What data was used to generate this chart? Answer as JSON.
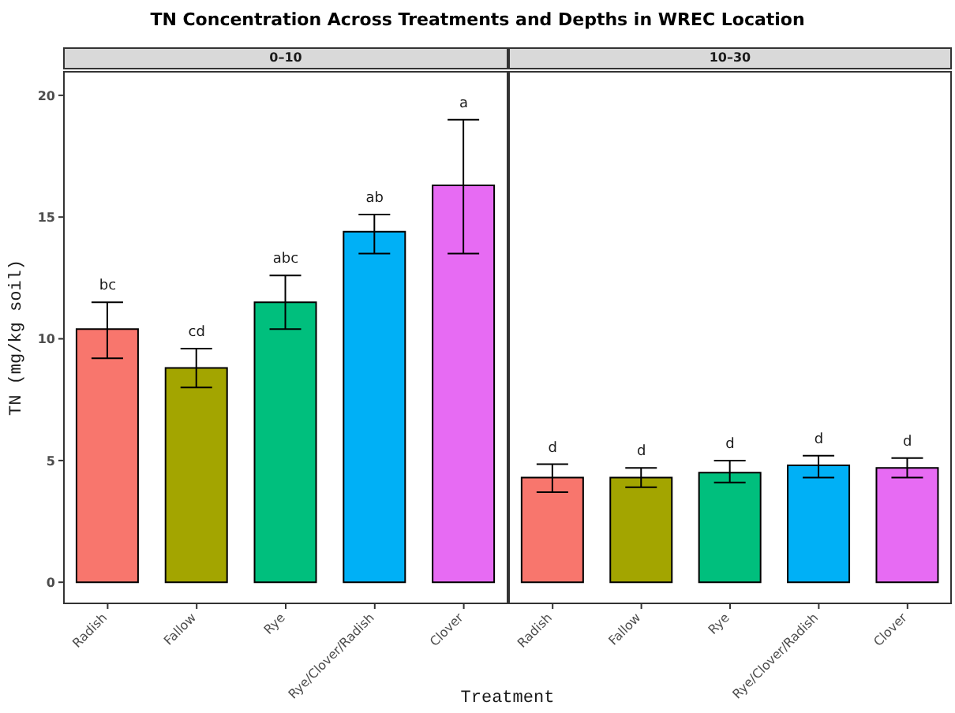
{
  "chart_data": [
    {
      "type": "bar",
      "title": "TN Concentration Across Treatments and Depths in WREC Location",
      "subtitle": "0–10",
      "xlabel": "Treatment",
      "ylabel": "TN (mg/kg soil)",
      "categories": [
        "Radish",
        "Fallow",
        "Rye",
        "Rye/Clover/Radish",
        "Clover"
      ],
      "values": [
        10.4,
        8.8,
        11.5,
        14.4,
        16.3
      ],
      "colors": [
        "#f8766d",
        "#a3a500",
        "#00bf7d",
        "#00b0f6",
        "#e76bf3"
      ],
      "errors": [
        [
          9.2,
          11.5
        ],
        [
          8.0,
          9.6
        ],
        [
          10.4,
          12.6
        ],
        [
          13.5,
          15.1
        ],
        [
          13.5,
          19.0
        ]
      ],
      "ylim": [
        -0.9,
        21
      ],
      "yticks": [
        0,
        5,
        10,
        15,
        20
      ],
      "grid": false,
      "annotations": [
        "bc",
        "cd",
        "abc",
        "ab",
        "a"
      ]
    },
    {
      "type": "bar",
      "subtitle": "10–30",
      "categories": [
        "Radish",
        "Fallow",
        "Rye",
        "Rye/Clover/Radish",
        "Clover"
      ],
      "values": [
        4.3,
        4.3,
        4.5,
        4.8,
        4.7
      ],
      "colors": [
        "#f8766d",
        "#a3a500",
        "#00bf7d",
        "#00b0f6",
        "#e76bf3"
      ],
      "errors": [
        [
          3.7,
          4.85
        ],
        [
          3.9,
          4.7
        ],
        [
          4.1,
          5.0
        ],
        [
          4.3,
          5.2
        ],
        [
          4.3,
          5.1
        ]
      ],
      "ylim": [
        -0.9,
        21
      ],
      "yticks": [
        0,
        5,
        10,
        15,
        20
      ],
      "grid": false,
      "tick_labels": "x",
      "annotations": [
        "d",
        "d",
        "d",
        "d",
        "d"
      ]
    }
  ]
}
